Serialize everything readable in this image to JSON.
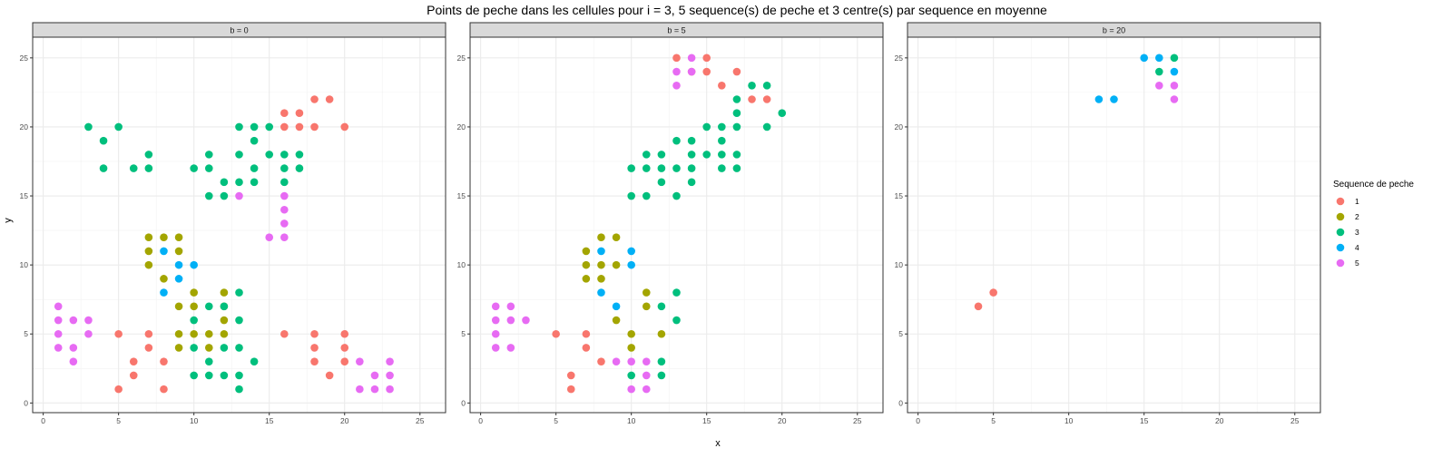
{
  "chart_data": {
    "type": "scatter",
    "title": "Points de peche dans les cellules pour i = 3, 5 sequence(s) de peche et 3 centre(s) par sequence en moyenne",
    "xlabel": "x",
    "ylabel": "y",
    "xlim": [
      -0.7,
      26.7
    ],
    "ylim": [
      -0.7,
      26.5
    ],
    "xticks": [
      0,
      5,
      10,
      15,
      20,
      25
    ],
    "yticks": [
      0,
      5,
      10,
      15,
      20,
      25
    ],
    "grid": true,
    "legend": {
      "title": "Sequence de peche",
      "placement": "right",
      "entries": [
        {
          "label": "1",
          "color": "#F8766D"
        },
        {
          "label": "2",
          "color": "#A3A500"
        },
        {
          "label": "3",
          "color": "#00BF7D"
        },
        {
          "label": "4",
          "color": "#00B0F6"
        },
        {
          "label": "5",
          "color": "#E76BF3"
        }
      ]
    },
    "panels": [
      {
        "label": "b = 0",
        "series": [
          {
            "name": "1",
            "points": [
              [
                5,
                5
              ],
              [
                5,
                1
              ],
              [
                6,
                3
              ],
              [
                6,
                2
              ],
              [
                7,
                5
              ],
              [
                7,
                4
              ],
              [
                8,
                3
              ],
              [
                8,
                1
              ],
              [
                16,
                21
              ],
              [
                16,
                20
              ],
              [
                17,
                21
              ],
              [
                17,
                20
              ],
              [
                18,
                22
              ],
              [
                18,
                20
              ],
              [
                19,
                22
              ],
              [
                20,
                20
              ],
              [
                16,
                5
              ],
              [
                18,
                5
              ],
              [
                18,
                4
              ],
              [
                18,
                3
              ],
              [
                19,
                2
              ],
              [
                20,
                5
              ],
              [
                20,
                4
              ],
              [
                20,
                3
              ]
            ]
          },
          {
            "name": "2",
            "points": [
              [
                7,
                12
              ],
              [
                7,
                11
              ],
              [
                7,
                10
              ],
              [
                8,
                12
              ],
              [
                8,
                9
              ],
              [
                9,
                12
              ],
              [
                9,
                11
              ],
              [
                9,
                7
              ],
              [
                9,
                5
              ],
              [
                9,
                4
              ],
              [
                10,
                8
              ],
              [
                10,
                7
              ],
              [
                10,
                5
              ],
              [
                11,
                5
              ],
              [
                11,
                4
              ],
              [
                12,
                8
              ],
              [
                12,
                7
              ],
              [
                12,
                6
              ],
              [
                12,
                5
              ]
            ]
          },
          {
            "name": "3",
            "points": [
              [
                3,
                20
              ],
              [
                4,
                19
              ],
              [
                4,
                17
              ],
              [
                5,
                20
              ],
              [
                6,
                17
              ],
              [
                7,
                18
              ],
              [
                7,
                17
              ],
              [
                10,
                17
              ],
              [
                11,
                18
              ],
              [
                11,
                17
              ],
              [
                11,
                15
              ],
              [
                12,
                16
              ],
              [
                12,
                15
              ],
              [
                13,
                20
              ],
              [
                13,
                18
              ],
              [
                13,
                16
              ],
              [
                14,
                20
              ],
              [
                14,
                19
              ],
              [
                14,
                17
              ],
              [
                14,
                16
              ],
              [
                15,
                20
              ],
              [
                15,
                18
              ],
              [
                16,
                18
              ],
              [
                16,
                17
              ],
              [
                16,
                16
              ],
              [
                17,
                18
              ],
              [
                17,
                17
              ],
              [
                10,
                6
              ],
              [
                10,
                4
              ],
              [
                10,
                2
              ],
              [
                11,
                7
              ],
              [
                11,
                3
              ],
              [
                11,
                2
              ],
              [
                12,
                7
              ],
              [
                12,
                4
              ],
              [
                12,
                2
              ],
              [
                13,
                8
              ],
              [
                13,
                6
              ],
              [
                13,
                4
              ],
              [
                13,
                2
              ],
              [
                13,
                1
              ],
              [
                14,
                3
              ]
            ]
          },
          {
            "name": "4",
            "points": [
              [
                8,
                11
              ],
              [
                8,
                8
              ],
              [
                9,
                10
              ],
              [
                9,
                9
              ],
              [
                10,
                10
              ]
            ]
          },
          {
            "name": "5",
            "points": [
              [
                1,
                7
              ],
              [
                1,
                6
              ],
              [
                1,
                5
              ],
              [
                1,
                4
              ],
              [
                2,
                6
              ],
              [
                2,
                4
              ],
              [
                2,
                3
              ],
              [
                3,
                6
              ],
              [
                3,
                5
              ],
              [
                13,
                15
              ],
              [
                15,
                12
              ],
              [
                16,
                15
              ],
              [
                16,
                14
              ],
              [
                16,
                13
              ],
              [
                16,
                12
              ],
              [
                21,
                3
              ],
              [
                21,
                1
              ],
              [
                22,
                2
              ],
              [
                22,
                1
              ],
              [
                23,
                3
              ],
              [
                23,
                2
              ],
              [
                23,
                1
              ]
            ]
          }
        ]
      },
      {
        "label": "b = 5",
        "series": [
          {
            "name": "1",
            "points": [
              [
                13,
                25
              ],
              [
                14,
                24
              ],
              [
                15,
                25
              ],
              [
                15,
                24
              ],
              [
                16,
                23
              ],
              [
                17,
                24
              ],
              [
                18,
                22
              ],
              [
                19,
                22
              ],
              [
                5,
                5
              ],
              [
                6,
                2
              ],
              [
                6,
                1
              ],
              [
                7,
                5
              ],
              [
                7,
                4
              ],
              [
                8,
                3
              ]
            ]
          },
          {
            "name": "2",
            "points": [
              [
                7,
                11
              ],
              [
                7,
                10
              ],
              [
                7,
                9
              ],
              [
                8,
                12
              ],
              [
                8,
                10
              ],
              [
                8,
                9
              ],
              [
                9,
                12
              ],
              [
                9,
                10
              ],
              [
                9,
                6
              ],
              [
                10,
                5
              ],
              [
                10,
                4
              ],
              [
                11,
                8
              ],
              [
                11,
                7
              ],
              [
                12,
                5
              ]
            ]
          },
          {
            "name": "3",
            "points": [
              [
                10,
                17
              ],
              [
                10,
                15
              ],
              [
                11,
                18
              ],
              [
                11,
                17
              ],
              [
                11,
                15
              ],
              [
                12,
                18
              ],
              [
                12,
                17
              ],
              [
                12,
                16
              ],
              [
                13,
                19
              ],
              [
                13,
                17
              ],
              [
                13,
                15
              ],
              [
                14,
                19
              ],
              [
                14,
                18
              ],
              [
                14,
                17
              ],
              [
                14,
                16
              ],
              [
                15,
                20
              ],
              [
                15,
                18
              ],
              [
                16,
                20
              ],
              [
                16,
                19
              ],
              [
                16,
                18
              ],
              [
                16,
                17
              ],
              [
                17,
                22
              ],
              [
                17,
                21
              ],
              [
                17,
                20
              ],
              [
                17,
                18
              ],
              [
                17,
                17
              ],
              [
                18,
                23
              ],
              [
                19,
                23
              ],
              [
                19,
                20
              ],
              [
                20,
                21
              ],
              [
                10,
                2
              ],
              [
                12,
                7
              ],
              [
                12,
                3
              ],
              [
                12,
                2
              ],
              [
                13,
                8
              ],
              [
                13,
                6
              ]
            ]
          },
          {
            "name": "4",
            "points": [
              [
                8,
                11
              ],
              [
                8,
                8
              ],
              [
                9,
                7
              ],
              [
                10,
                11
              ],
              [
                10,
                10
              ]
            ]
          },
          {
            "name": "5",
            "points": [
              [
                13,
                24
              ],
              [
                13,
                23
              ],
              [
                14,
                25
              ],
              [
                14,
                24
              ],
              [
                1,
                7
              ],
              [
                1,
                6
              ],
              [
                1,
                5
              ],
              [
                1,
                4
              ],
              [
                2,
                7
              ],
              [
                2,
                6
              ],
              [
                2,
                4
              ],
              [
                3,
                6
              ],
              [
                9,
                3
              ],
              [
                10,
                3
              ],
              [
                10,
                1
              ],
              [
                11,
                3
              ],
              [
                11,
                2
              ],
              [
                11,
                1
              ]
            ]
          }
        ]
      },
      {
        "label": "b = 20",
        "series": [
          {
            "name": "1",
            "points": [
              [
                4,
                7
              ],
              [
                5,
                8
              ]
            ]
          },
          {
            "name": "2",
            "points": []
          },
          {
            "name": "3",
            "points": [
              [
                16,
                24
              ],
              [
                17,
                25
              ]
            ]
          },
          {
            "name": "4",
            "points": [
              [
                12,
                22
              ],
              [
                13,
                22
              ],
              [
                15,
                25
              ],
              [
                16,
                25
              ],
              [
                17,
                24
              ]
            ]
          },
          {
            "name": "5",
            "points": [
              [
                16,
                23
              ],
              [
                17,
                23
              ],
              [
                17,
                22
              ]
            ]
          }
        ]
      }
    ]
  }
}
